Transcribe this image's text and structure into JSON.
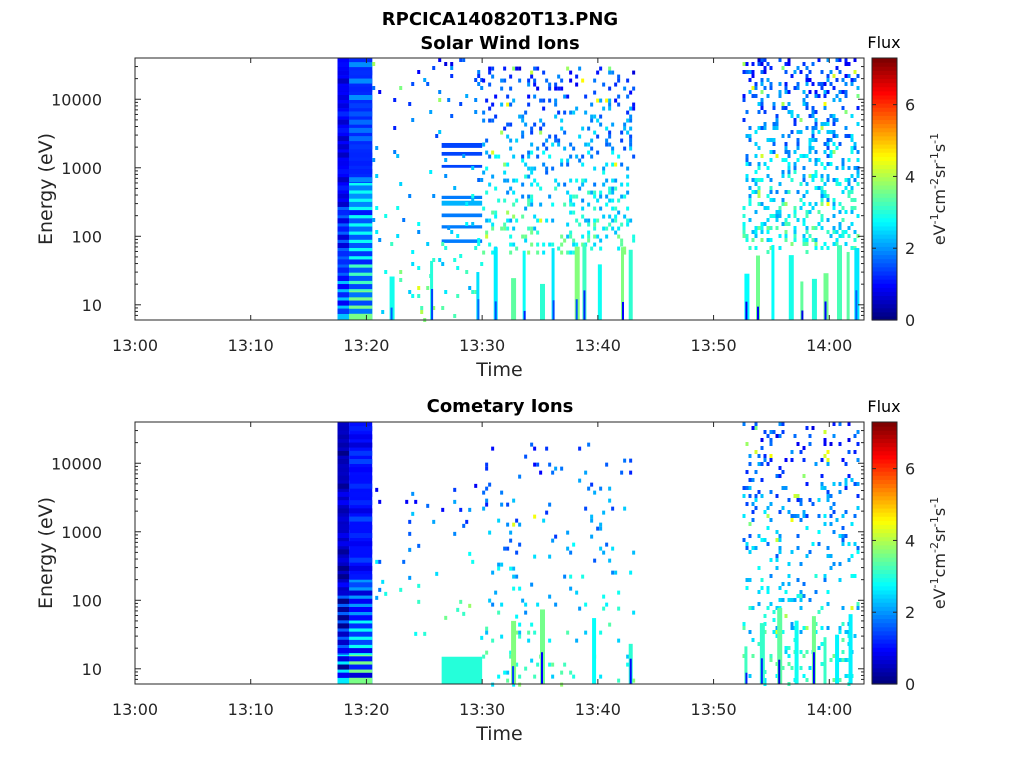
{
  "figure": {
    "title_line1": "RPCICA140820T13.PNG",
    "title_line2": "Solar Wind Ions"
  },
  "colormap": "jet",
  "chart_data": [
    {
      "type": "heatmap",
      "title": "Solar Wind Ions",
      "xlabel": "Time",
      "ylabel": "Energy (eV)",
      "yscale": "log",
      "xlim": [
        "13:00",
        "14:03"
      ],
      "ylim": [
        6,
        40000
      ],
      "x_ticks": [
        "13:00",
        "13:10",
        "13:20",
        "13:30",
        "13:40",
        "13:50",
        "14:00"
      ],
      "y_ticks": [
        "10",
        "100",
        "1000",
        "10000"
      ],
      "colorbar": {
        "label": "Flux",
        "unit_base": "eV",
        "unit_exp1": "-1",
        "unit_mid1": "cm",
        "unit_exp2": "-2",
        "unit_mid2": "sr",
        "unit_exp3": "-1",
        "unit_mid3": "s",
        "unit_exp4": "-1",
        "range": [
          0,
          7.3
        ],
        "ticks": [
          "0",
          "2",
          "4",
          "6"
        ]
      },
      "blocks": [
        {
          "t0": "13:17:30",
          "t1": "13:18:30",
          "e0": 6,
          "e1": 40000,
          "v": 0.9
        },
        {
          "t0": "13:17:30",
          "t1": "13:18:30",
          "e0": 6,
          "e1": 300,
          "v": 1.6
        },
        {
          "t0": "13:17:30",
          "t1": "13:18:30",
          "e0": 6,
          "e1": 25,
          "v": 2.3
        },
        {
          "t0": "13:18:30",
          "t1": "13:20:30",
          "e0": 6,
          "e1": 40000,
          "v": 1.5
        },
        {
          "t0": "13:18:30",
          "t1": "13:20:30",
          "e0": 600,
          "e1": 40000,
          "v": 1.2
        },
        {
          "t0": "13:18:30",
          "t1": "13:20:30",
          "e0": 6,
          "e1": 600,
          "v": 2.8
        },
        {
          "t0": "13:18:30",
          "t1": "13:20:30",
          "e0": 6,
          "e1": 40,
          "v": 3.2
        },
        {
          "t0": "13:18:30",
          "t1": "13:20:30",
          "e0": 6,
          "e1": 16,
          "v": 3.6
        },
        {
          "t0": "13:26:30",
          "t1": "13:30:00",
          "e0": 1950,
          "e1": 2300,
          "v": 1.4
        },
        {
          "t0": "13:26:30",
          "t1": "13:30:00",
          "e0": 1500,
          "e1": 1700,
          "v": 1.4
        },
        {
          "t0": "13:26:30",
          "t1": "13:30:00",
          "e0": 1000,
          "e1": 1100,
          "v": 1.4
        },
        {
          "t0": "13:26:30",
          "t1": "13:30:00",
          "e0": 350,
          "e1": 390,
          "v": 1.8
        },
        {
          "t0": "13:26:30",
          "t1": "13:30:00",
          "e0": 280,
          "e1": 330,
          "v": 2.2
        },
        {
          "t0": "13:26:30",
          "t1": "13:30:00",
          "e0": 190,
          "e1": 215,
          "v": 1.8
        },
        {
          "t0": "13:26:30",
          "t1": "13:30:00",
          "e0": 130,
          "e1": 145,
          "v": 1.8
        },
        {
          "t0": "13:26:30",
          "t1": "13:30:00",
          "e0": 80,
          "e1": 90,
          "v": 1.8
        }
      ],
      "scatter": [
        {
          "t0": "13:20:30",
          "t1": "13:30:00",
          "density": 0.05,
          "e0": 6,
          "e1": 40000
        },
        {
          "t0": "13:30:00",
          "t1": "13:43:00",
          "density": 0.18,
          "e0": 60,
          "e1": 30000
        },
        {
          "t0": "13:52:30",
          "t1": "14:02:30",
          "density": 0.28,
          "e0": 60,
          "e1": 40000
        }
      ],
      "streaks": [
        "13:22:00",
        "13:25:30",
        "13:29:30",
        "13:31:00",
        "13:32:30",
        "13:33:30",
        "13:35:00",
        "13:36:00",
        "13:38:00",
        "13:38:40",
        "13:40:00",
        "13:42:00",
        "13:42:40",
        "13:52:40",
        "13:53:40",
        "13:55:00",
        "13:56:30",
        "13:57:30",
        "13:58:30",
        "13:59:30",
        "14:00:40",
        "14:01:30",
        "14:02:10"
      ]
    },
    {
      "type": "heatmap",
      "title": "Cometary Ions",
      "xlabel": "Time",
      "ylabel": "Energy (eV)",
      "yscale": "log",
      "xlim": [
        "13:00",
        "14:03"
      ],
      "ylim": [
        6,
        40000
      ],
      "x_ticks": [
        "13:00",
        "13:10",
        "13:20",
        "13:30",
        "13:40",
        "13:50",
        "14:00"
      ],
      "y_ticks": [
        "10",
        "100",
        "1000",
        "10000"
      ],
      "colorbar": {
        "label": "Flux",
        "unit_base": "eV",
        "unit_exp1": "-1",
        "unit_mid1": "cm",
        "unit_exp2": "-2",
        "unit_mid2": "sr",
        "unit_exp3": "-1",
        "unit_mid3": "s",
        "unit_exp4": "-1",
        "range": [
          0,
          7.3
        ],
        "ticks": [
          "0",
          "2",
          "4",
          "6"
        ]
      },
      "blocks": [
        {
          "t0": "13:17:30",
          "t1": "13:18:30",
          "e0": 6,
          "e1": 40000,
          "v": 0.5
        },
        {
          "t0": "13:17:30",
          "t1": "13:18:30",
          "e0": 6,
          "e1": 120,
          "v": 1.6
        },
        {
          "t0": "13:17:30",
          "t1": "13:18:30",
          "e0": 6,
          "e1": 16,
          "v": 2.6
        },
        {
          "t0": "13:18:30",
          "t1": "13:20:30",
          "e0": 6,
          "e1": 40000,
          "v": 1.0
        },
        {
          "t0": "13:18:30",
          "t1": "13:20:30",
          "e0": 6,
          "e1": 200,
          "v": 2.0
        },
        {
          "t0": "13:18:30",
          "t1": "13:20:30",
          "e0": 6,
          "e1": 50,
          "v": 2.8
        },
        {
          "t0": "13:18:30",
          "t1": "13:20:30",
          "e0": 6,
          "e1": 16,
          "v": 3.6
        },
        {
          "t0": "13:26:30",
          "t1": "13:30:00",
          "e0": 6,
          "e1": 15,
          "v": 3.0
        }
      ],
      "scatter": [
        {
          "t0": "13:20:30",
          "t1": "13:30:00",
          "density": 0.03,
          "e0": 30,
          "e1": 5000
        },
        {
          "t0": "13:30:00",
          "t1": "13:43:00",
          "density": 0.06,
          "e0": 6,
          "e1": 20000
        },
        {
          "t0": "13:52:30",
          "t1": "14:02:30",
          "density": 0.14,
          "e0": 6,
          "e1": 40000
        }
      ],
      "streaks": [
        "13:32:30",
        "13:35:00",
        "13:39:30",
        "13:42:40",
        "13:52:40",
        "13:54:00",
        "13:55:30",
        "13:57:00",
        "13:58:30",
        "13:59:30",
        "14:00:30",
        "14:01:40"
      ]
    }
  ]
}
